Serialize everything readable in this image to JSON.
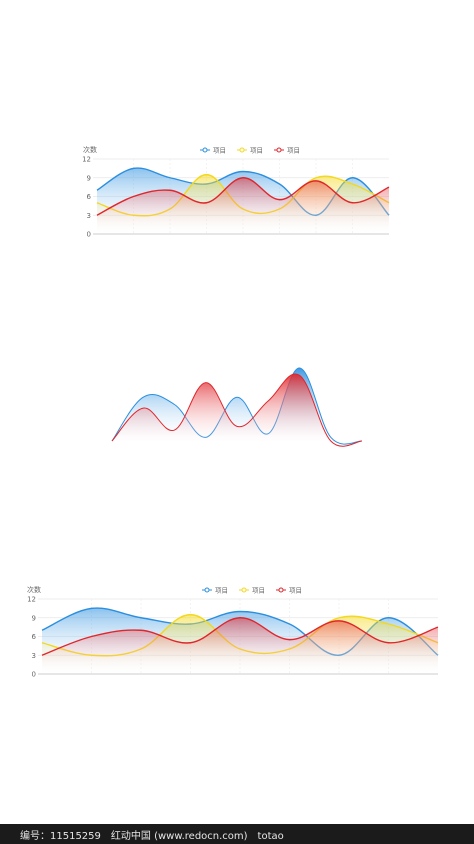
{
  "colors": {
    "blue": "#2b8fdf",
    "yellow": "#f4d81a",
    "red": "#e0262b"
  },
  "chart_data": [
    {
      "type": "area",
      "ylabel": "次数",
      "ylim": [
        0,
        12
      ],
      "yticks": [
        0,
        3,
        6,
        9,
        12
      ],
      "legend_position": "top-center",
      "x": [
        0,
        1,
        2,
        3,
        4,
        5,
        6,
        7,
        8
      ],
      "series": [
        {
          "name": "项目",
          "color": "blue",
          "values": [
            7,
            10.5,
            9,
            8,
            10,
            8,
            3,
            9,
            3
          ]
        },
        {
          "name": "项目",
          "color": "yellow",
          "values": [
            5,
            3,
            4,
            9.5,
            4,
            4,
            9,
            8,
            5
          ]
        },
        {
          "name": "项目",
          "color": "red",
          "values": [
            3,
            6,
            7,
            5,
            9,
            5.5,
            8.5,
            5,
            7.5
          ]
        }
      ]
    },
    {
      "type": "area",
      "series": [
        {
          "color": "blue",
          "values": [
            0,
            0.6,
            0.5,
            0.05,
            0.6,
            0.1,
            1,
            0.05,
            0
          ]
        },
        {
          "color": "red",
          "values": [
            0,
            0.45,
            0.15,
            0.8,
            0.2,
            0.55,
            0.9,
            0,
            0
          ]
        }
      ]
    },
    {
      "type": "area",
      "ylabel": "次数",
      "ylim": [
        0,
        12
      ],
      "yticks": [
        0,
        3,
        6,
        9,
        12
      ],
      "legend_position": "top-center",
      "x": [
        0,
        1,
        2,
        3,
        4,
        5,
        6,
        7,
        8
      ],
      "series": [
        {
          "name": "项目",
          "color": "blue",
          "values": [
            7,
            10.5,
            9,
            8,
            10,
            8,
            3,
            9,
            3
          ]
        },
        {
          "name": "项目",
          "color": "yellow",
          "values": [
            5,
            3,
            4,
            9.5,
            4,
            4,
            9,
            8,
            5
          ]
        },
        {
          "name": "项目",
          "color": "red",
          "values": [
            3,
            6,
            7,
            5,
            9,
            5.5,
            8.5,
            5,
            7.5
          ]
        }
      ]
    }
  ],
  "footer": {
    "text": "编号：11515259　红动中国 (www.redocn.com)　totao"
  }
}
